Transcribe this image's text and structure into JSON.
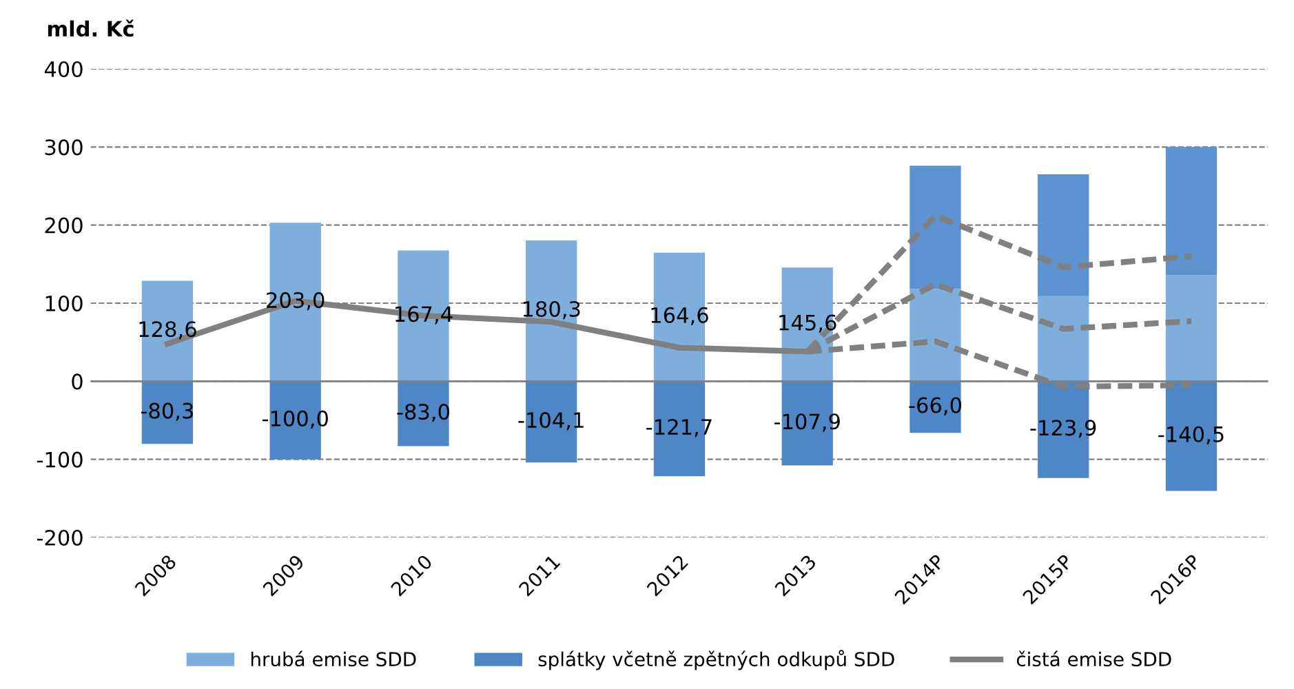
{
  "chart_data": {
    "type": "bar",
    "stacked": true,
    "ylabel": "mld. Kč",
    "categories": [
      "2008",
      "2009",
      "2010",
      "2011",
      "2012",
      "2013",
      "2014P",
      "2015P",
      "2016P"
    ],
    "series": [
      {
        "name": "hrubá emise SDD",
        "color": "#7eaedc",
        "values": [
          128.6,
          203.0,
          167.4,
          180.3,
          164.6,
          145.6,
          118,
          109,
          136
        ],
        "value_labels": [
          "128,6",
          "203,0",
          "167,4",
          "180,3",
          "164,6",
          "145,6",
          null,
          null,
          null
        ]
      },
      {
        "color": "#5b92cf",
        "values": [
          null,
          null,
          null,
          null,
          null,
          null,
          158,
          156,
          164
        ]
      },
      {
        "name": "splátky včetně zpětných odkupů SDD",
        "color": "#4f86c6",
        "values": [
          -80.3,
          -100.0,
          -83.0,
          -104.1,
          -121.7,
          -107.9,
          -66.0,
          -123.9,
          -140.5
        ],
        "value_labels": [
          "-80,3",
          "-100,0",
          "-83,0",
          "-104,1",
          "-121,7",
          "-107,9",
          "-66,0",
          "-123,9",
          "-140,5"
        ]
      },
      {
        "name": "čistá emise SDD",
        "type": "line",
        "color": "#808080",
        "line_style": "solid",
        "values": [
          48,
          103,
          84,
          76,
          43,
          38,
          null,
          null,
          null
        ]
      },
      {
        "type": "line",
        "color": "#808080",
        "line_style": "dashed",
        "values": [
          null,
          null,
          null,
          null,
          null,
          38,
          212,
          146,
          160
        ]
      },
      {
        "type": "line",
        "color": "#808080",
        "line_style": "dashed",
        "values": [
          null,
          null,
          null,
          null,
          null,
          38,
          124,
          67,
          77
        ]
      },
      {
        "type": "line",
        "color": "#808080",
        "line_style": "dashed",
        "values": [
          null,
          null,
          null,
          null,
          null,
          38,
          51,
          -7,
          -5
        ]
      }
    ],
    "ylim": [
      -200,
      400
    ],
    "yticks": [
      -200,
      -100,
      0,
      100,
      200,
      300,
      400
    ],
    "grid": "y",
    "legend": "bottom"
  }
}
